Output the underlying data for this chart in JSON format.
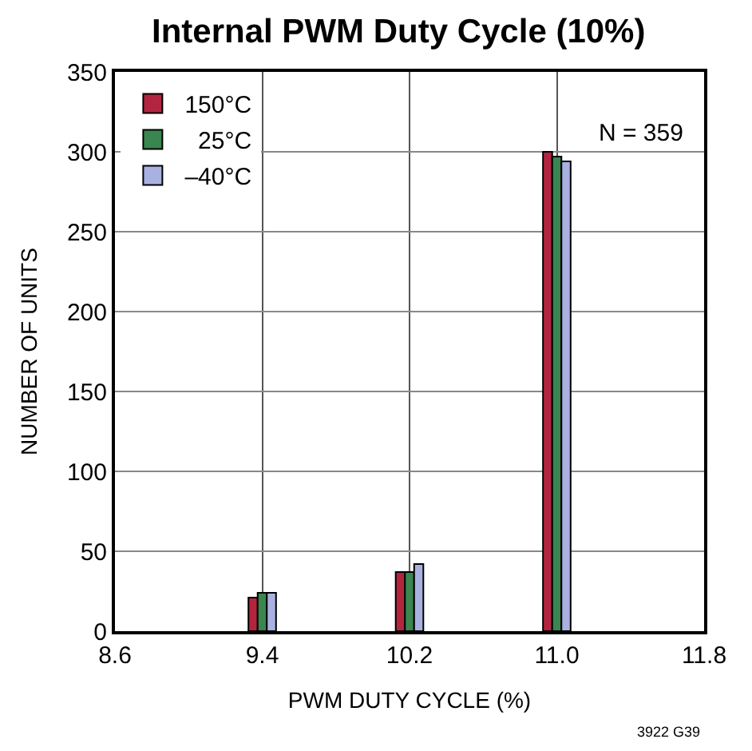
{
  "chart_data": {
    "type": "bar",
    "title": "Internal PWM Duty Cycle (10%)",
    "xlabel": "PWM DUTY CYCLE (%)",
    "ylabel": "NUMBER OF UNITS",
    "x": [
      9.4,
      10.2,
      11.0
    ],
    "series": [
      {
        "name": "150°C",
        "color": "#b3253f",
        "values": [
          21,
          37,
          300
        ]
      },
      {
        "name": "  25°C",
        "color": "#3a8550",
        "values": [
          24,
          37,
          297
        ]
      },
      {
        "name": "–40°C",
        "color": "#a9b1e0",
        "values": [
          24,
          42,
          294
        ]
      }
    ],
    "xlim": [
      8.6,
      11.8
    ],
    "xticks": [
      {
        "value": 8.6,
        "label": "8.6"
      },
      {
        "value": 9.4,
        "label": "9.4"
      },
      {
        "value": 10.2,
        "label": "10.2"
      },
      {
        "value": 11.0,
        "label": "11.0"
      },
      {
        "value": 11.8,
        "label": "11.8"
      }
    ],
    "ylim": [
      0,
      350
    ],
    "yticks": [
      0,
      50,
      100,
      150,
      200,
      250,
      300,
      350
    ],
    "grid": true,
    "legend": "top left",
    "annotations": [
      "N = 359",
      "3922 G39"
    ]
  }
}
